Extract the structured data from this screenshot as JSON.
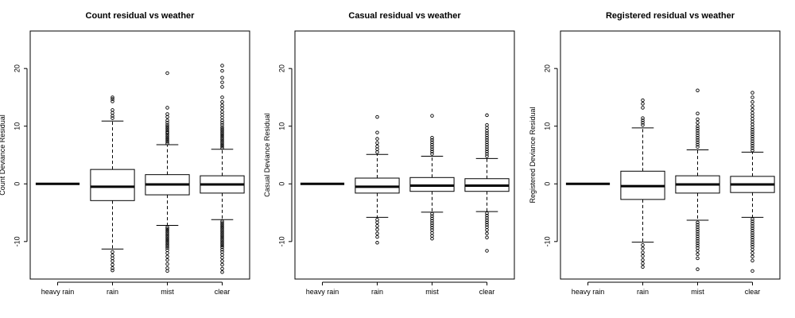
{
  "chart_data": [
    {
      "type": "box",
      "title": "Count residual vs weather",
      "xlabel": "",
      "ylabel": "Count Deviance Residual",
      "ylim": [
        -16.5,
        26.5
      ],
      "yticks": [
        -10,
        0,
        10,
        20
      ],
      "ytick_labels": [
        "-10",
        "0",
        "10",
        "20"
      ],
      "grid": false,
      "categories": [
        "heavy rain",
        "rain",
        "mist",
        "clear"
      ],
      "boxes": [
        {
          "category": "heavy rain",
          "min": 0,
          "q1": 0,
          "median": 0,
          "q3": 0,
          "max": 0,
          "outliers": []
        },
        {
          "category": "rain",
          "min": -11.3,
          "q1": -2.9,
          "median": -0.5,
          "q3": 2.5,
          "max": 10.9,
          "outliers": [
            15.0,
            14.7,
            14.3,
            12.8,
            12.3,
            11.8,
            11.4,
            -11.8,
            -12.4,
            -12.9,
            -13.4,
            -14.0,
            -14.6,
            -15.0
          ]
        },
        {
          "category": "mist",
          "min": -7.2,
          "q1": -1.9,
          "median": -0.1,
          "q3": 1.6,
          "max": 6.8,
          "outliers": [
            19.2,
            13.2,
            12.1,
            11.6,
            11.0,
            10.6,
            10.2,
            9.9,
            9.6,
            9.3,
            9.0,
            8.8,
            8.5,
            8.2,
            7.9,
            7.6,
            7.3,
            7.0,
            -7.5,
            -7.8,
            -8.1,
            -8.4,
            -8.7,
            -9.0,
            -9.3,
            -9.6,
            -9.9,
            -10.2,
            -10.5,
            -10.8,
            -11.1,
            -11.5,
            -12.0,
            -12.6,
            -13.2,
            -13.9,
            -14.6,
            -15.1
          ]
        },
        {
          "category": "clear",
          "min": -6.2,
          "q1": -1.6,
          "median": -0.1,
          "q3": 1.4,
          "max": 6.0,
          "outliers": [
            20.5,
            19.6,
            18.4,
            17.6,
            16.8,
            15.0,
            14.2,
            13.6,
            13.1,
            12.5,
            12.0,
            11.5,
            11.0,
            10.6,
            10.2,
            9.8,
            9.5,
            9.2,
            8.9,
            8.6,
            8.3,
            8.0,
            7.7,
            7.4,
            7.1,
            6.8,
            6.5,
            6.2,
            -6.5,
            -6.8,
            -7.1,
            -7.4,
            -7.7,
            -8.0,
            -8.3,
            -8.6,
            -8.9,
            -9.2,
            -9.5,
            -9.8,
            -10.1,
            -10.4,
            -10.7,
            -11.0,
            -11.4,
            -11.8,
            -12.3,
            -12.8,
            -13.4,
            -14.0,
            -14.7,
            -15.3
          ]
        }
      ]
    },
    {
      "type": "box",
      "title": "Casual residual vs weather",
      "xlabel": "",
      "ylabel": "Casual Deviance Residual",
      "ylim": [
        -16.5,
        26.5
      ],
      "yticks": [
        -10,
        0,
        10,
        20
      ],
      "ytick_labels": [
        "-10",
        "0",
        "10",
        "20"
      ],
      "grid": false,
      "categories": [
        "heavy rain",
        "rain",
        "mist",
        "clear"
      ],
      "boxes": [
        {
          "category": "heavy rain",
          "min": 0,
          "q1": 0,
          "median": 0,
          "q3": 0,
          "max": 0,
          "outliers": []
        },
        {
          "category": "rain",
          "min": -5.8,
          "q1": -1.6,
          "median": -0.5,
          "q3": 1.0,
          "max": 5.1,
          "outliers": [
            11.6,
            8.9,
            7.8,
            7.1,
            6.5,
            6.0,
            5.5,
            -6.2,
            -6.7,
            -7.3,
            -7.9,
            -8.6,
            -9.2,
            -10.2
          ]
        },
        {
          "category": "mist",
          "min": -4.9,
          "q1": -1.3,
          "median": -0.3,
          "q3": 1.1,
          "max": 4.8,
          "outliers": [
            11.8,
            8.0,
            7.6,
            7.2,
            6.8,
            6.4,
            6.0,
            5.6,
            5.2,
            -5.2,
            -5.6,
            -6.0,
            -6.4,
            -6.8,
            -7.2,
            -7.6,
            -8.0,
            -8.5,
            -9.0,
            -9.5
          ]
        },
        {
          "category": "clear",
          "min": -4.8,
          "q1": -1.3,
          "median": -0.3,
          "q3": 0.9,
          "max": 4.4,
          "outliers": [
            11.9,
            10.2,
            9.7,
            9.2,
            8.8,
            8.4,
            8.0,
            7.6,
            7.2,
            6.8,
            6.4,
            6.0,
            5.6,
            5.2,
            4.8,
            -5.1,
            -5.5,
            -5.9,
            -6.3,
            -6.7,
            -7.1,
            -7.5,
            -8.0,
            -8.6,
            -9.3,
            -11.6
          ]
        }
      ]
    },
    {
      "type": "box",
      "title": "Registered residual vs weather",
      "xlabel": "",
      "ylabel": "Registered Deviance Residual",
      "ylim": [
        -16.5,
        26.5
      ],
      "yticks": [
        -10,
        0,
        10,
        20
      ],
      "ytick_labels": [
        "-10",
        "0",
        "10",
        "20"
      ],
      "grid": false,
      "categories": [
        "heavy rain",
        "rain",
        "mist",
        "clear"
      ],
      "boxes": [
        {
          "category": "heavy rain",
          "min": 0,
          "q1": 0,
          "median": 0,
          "q3": 0,
          "max": 0,
          "outliers": []
        },
        {
          "category": "rain",
          "min": -10.1,
          "q1": -2.7,
          "median": -0.4,
          "q3": 2.2,
          "max": 9.7,
          "outliers": [
            14.5,
            13.9,
            13.2,
            11.4,
            11.0,
            10.6,
            10.2,
            -10.6,
            -11.2,
            -11.9,
            -12.5,
            -13.2,
            -13.8,
            -14.4
          ]
        },
        {
          "category": "mist",
          "min": -6.3,
          "q1": -1.6,
          "median": -0.1,
          "q3": 1.4,
          "max": 5.9,
          "outliers": [
            16.2,
            12.2,
            11.2,
            10.6,
            10.0,
            9.6,
            9.2,
            8.8,
            8.4,
            8.0,
            7.6,
            7.2,
            6.8,
            6.4,
            -6.7,
            -7.1,
            -7.5,
            -7.9,
            -8.3,
            -8.7,
            -9.1,
            -9.5,
            -9.9,
            -10.3,
            -10.7,
            -11.1,
            -11.6,
            -12.2,
            -12.9,
            -14.8
          ]
        },
        {
          "category": "clear",
          "min": -5.8,
          "q1": -1.5,
          "median": -0.1,
          "q3": 1.3,
          "max": 5.5,
          "outliers": [
            15.8,
            15.0,
            14.2,
            13.5,
            12.9,
            12.3,
            11.8,
            11.3,
            10.8,
            10.3,
            9.8,
            9.4,
            9.0,
            8.6,
            8.2,
            7.8,
            7.4,
            7.0,
            6.6,
            6.2,
            5.8,
            -6.1,
            -6.5,
            -6.9,
            -7.3,
            -7.7,
            -8.1,
            -8.5,
            -8.9,
            -9.3,
            -9.7,
            -10.1,
            -10.5,
            -10.9,
            -11.4,
            -12.0,
            -12.6,
            -13.3,
            -15.1
          ]
        }
      ]
    }
  ]
}
